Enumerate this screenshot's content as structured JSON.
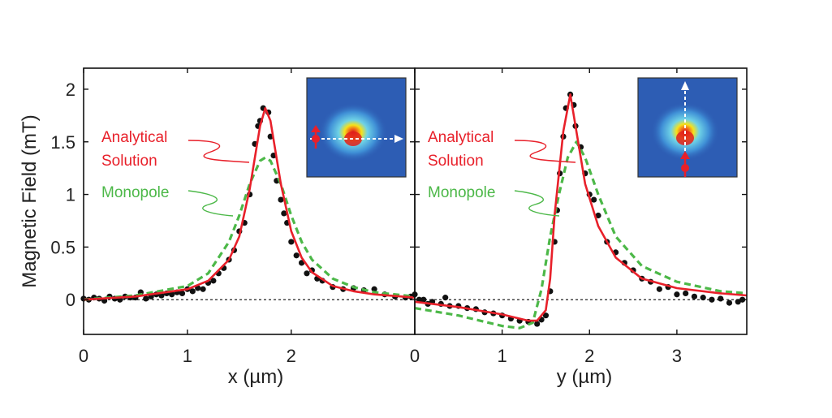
{
  "chart_data": [
    {
      "type": "scatter+line",
      "xlabel": "x (µm)",
      "ylabel": "Magnetic Field (mT)",
      "xlim": [
        0,
        3.19
      ],
      "ylim": [
        -0.33,
        2.2
      ],
      "xticks": [
        "0",
        "1",
        "2"
      ],
      "xtick_values": [
        0,
        1,
        2
      ],
      "yticks": [
        "0",
        "0.5",
        "1",
        "1.5",
        "2"
      ],
      "ytick_values": [
        0,
        0.5,
        1,
        1.5,
        2
      ],
      "grid": false,
      "zero_line": "dotted black",
      "annotations": {
        "analytical_line1": "Analytical",
        "analytical_line2": "Solution",
        "monopole": "Monopole"
      },
      "inset": "magnetic field map, horizontal line scan (white dashed arrow), red magnet arrow",
      "series": [
        {
          "name": "Analytical Solution",
          "style": "solid",
          "color": "#e8202a",
          "points": [
            [
              0,
              0.0
            ],
            [
              0.5,
              0.03
            ],
            [
              1.0,
              0.1
            ],
            [
              1.2,
              0.18
            ],
            [
              1.4,
              0.38
            ],
            [
              1.5,
              0.6
            ],
            [
              1.6,
              1.05
            ],
            [
              1.7,
              1.65
            ],
            [
              1.75,
              1.82
            ],
            [
              1.8,
              1.7
            ],
            [
              1.9,
              1.1
            ],
            [
              2.0,
              0.65
            ],
            [
              2.1,
              0.4
            ],
            [
              2.2,
              0.26
            ],
            [
              2.4,
              0.13
            ],
            [
              2.6,
              0.08
            ],
            [
              2.8,
              0.05
            ],
            [
              3.19,
              0.02
            ]
          ]
        },
        {
          "name": "Monopole",
          "style": "dashed",
          "color": "#4cb848",
          "points": [
            [
              0,
              0.0
            ],
            [
              0.5,
              0.04
            ],
            [
              1.0,
              0.13
            ],
            [
              1.2,
              0.25
            ],
            [
              1.4,
              0.55
            ],
            [
              1.5,
              0.8
            ],
            [
              1.6,
              1.1
            ],
            [
              1.7,
              1.32
            ],
            [
              1.75,
              1.35
            ],
            [
              1.8,
              1.32
            ],
            [
              1.9,
              1.1
            ],
            [
              2.0,
              0.8
            ],
            [
              2.1,
              0.55
            ],
            [
              2.2,
              0.38
            ],
            [
              2.4,
              0.2
            ],
            [
              2.6,
              0.12
            ],
            [
              2.8,
              0.07
            ],
            [
              3.19,
              0.03
            ]
          ]
        },
        {
          "style": "markers",
          "color": "#111111",
          "points": [
            [
              0,
              0.01
            ],
            [
              0.05,
              0.0
            ],
            [
              0.1,
              0.02
            ],
            [
              0.15,
              0.01
            ],
            [
              0.2,
              -0.01
            ],
            [
              0.25,
              0.03
            ],
            [
              0.3,
              0.01
            ],
            [
              0.35,
              0.0
            ],
            [
              0.4,
              0.03
            ],
            [
              0.45,
              0.02
            ],
            [
              0.5,
              0.02
            ],
            [
              0.55,
              0.07
            ],
            [
              0.6,
              0.01
            ],
            [
              0.65,
              0.03
            ],
            [
              0.7,
              0.05
            ],
            [
              0.75,
              0.04
            ],
            [
              0.8,
              0.06
            ],
            [
              0.85,
              0.05
            ],
            [
              0.9,
              0.07
            ],
            [
              0.95,
              0.06
            ],
            [
              1.0,
              0.1
            ],
            [
              1.05,
              0.08
            ],
            [
              1.1,
              0.11
            ],
            [
              1.15,
              0.1
            ],
            [
              1.2,
              0.16
            ],
            [
              1.25,
              0.18
            ],
            [
              1.3,
              0.25
            ],
            [
              1.35,
              0.3
            ],
            [
              1.4,
              0.38
            ],
            [
              1.45,
              0.47
            ],
            [
              1.5,
              0.65
            ],
            [
              1.55,
              0.73
            ],
            [
              1.6,
              1.0
            ],
            [
              1.65,
              1.48
            ],
            [
              1.68,
              1.65
            ],
            [
              1.7,
              1.7
            ],
            [
              1.73,
              1.82
            ],
            [
              1.78,
              1.78
            ],
            [
              1.8,
              1.55
            ],
            [
              1.83,
              1.37
            ],
            [
              1.86,
              1.13
            ],
            [
              1.9,
              0.95
            ],
            [
              1.93,
              0.82
            ],
            [
              1.96,
              0.73
            ],
            [
              2.0,
              0.55
            ],
            [
              2.05,
              0.42
            ],
            [
              2.1,
              0.35
            ],
            [
              2.15,
              0.25
            ],
            [
              2.2,
              0.28
            ],
            [
              2.25,
              0.2
            ],
            [
              2.3,
              0.18
            ],
            [
              2.4,
              0.12
            ],
            [
              2.5,
              0.1
            ],
            [
              2.6,
              0.11
            ],
            [
              2.7,
              0.09
            ],
            [
              2.8,
              0.1
            ],
            [
              2.9,
              0.05
            ],
            [
              3.0,
              0.03
            ],
            [
              3.1,
              0.02
            ],
            [
              3.15,
              0.03
            ]
          ]
        }
      ]
    },
    {
      "type": "scatter+line",
      "xlabel": "y (µm)",
      "xlim": [
        0,
        3.8
      ],
      "ylim": [
        -0.33,
        2.2
      ],
      "xticks": [
        "0",
        "1",
        "2",
        "3"
      ],
      "xtick_values": [
        0,
        1,
        2,
        3
      ],
      "grid": false,
      "zero_line": "dotted black",
      "annotations": {
        "analytical_line1": "Analytical",
        "analytical_line2": "Solution",
        "monopole": "Monopole"
      },
      "inset": "magnetic field map, vertical line scan (white dashed arrow), red magnet arrow",
      "series": [
        {
          "name": "Analytical Solution",
          "style": "solid",
          "color": "#e8202a",
          "points": [
            [
              0,
              -0.02
            ],
            [
              0.5,
              -0.07
            ],
            [
              1.0,
              -0.14
            ],
            [
              1.3,
              -0.2
            ],
            [
              1.4,
              -0.2
            ],
            [
              1.5,
              -0.1
            ],
            [
              1.55,
              0.2
            ],
            [
              1.6,
              0.8
            ],
            [
              1.7,
              1.6
            ],
            [
              1.78,
              1.95
            ],
            [
              1.85,
              1.6
            ],
            [
              1.95,
              1.1
            ],
            [
              2.1,
              0.7
            ],
            [
              2.3,
              0.4
            ],
            [
              2.6,
              0.2
            ],
            [
              3.0,
              0.11
            ],
            [
              3.5,
              0.06
            ],
            [
              3.8,
              0.04
            ]
          ]
        },
        {
          "name": "Monopole",
          "style": "dashed",
          "color": "#4cb848",
          "points": [
            [
              0,
              -0.08
            ],
            [
              0.5,
              -0.15
            ],
            [
              1.0,
              -0.25
            ],
            [
              1.2,
              -0.27
            ],
            [
              1.35,
              -0.22
            ],
            [
              1.45,
              0.1
            ],
            [
              1.55,
              0.6
            ],
            [
              1.65,
              1.0
            ],
            [
              1.75,
              1.35
            ],
            [
              1.85,
              1.5
            ],
            [
              1.95,
              1.35
            ],
            [
              2.1,
              1.0
            ],
            [
              2.3,
              0.6
            ],
            [
              2.6,
              0.32
            ],
            [
              3.0,
              0.17
            ],
            [
              3.5,
              0.08
            ],
            [
              3.8,
              0.06
            ]
          ]
        },
        {
          "style": "markers",
          "color": "#111111",
          "points": [
            [
              0,
              0.05
            ],
            [
              0.05,
              0.0
            ],
            [
              0.1,
              0.0
            ],
            [
              0.15,
              -0.04
            ],
            [
              0.2,
              -0.02
            ],
            [
              0.3,
              -0.04
            ],
            [
              0.35,
              0.02
            ],
            [
              0.4,
              -0.06
            ],
            [
              0.5,
              -0.06
            ],
            [
              0.6,
              -0.08
            ],
            [
              0.7,
              -0.09
            ],
            [
              0.8,
              -0.12
            ],
            [
              0.9,
              -0.13
            ],
            [
              1.0,
              -0.15
            ],
            [
              1.1,
              -0.18
            ],
            [
              1.2,
              -0.2
            ],
            [
              1.3,
              -0.21
            ],
            [
              1.4,
              -0.23
            ],
            [
              1.45,
              -0.19
            ],
            [
              1.5,
              -0.15
            ],
            [
              1.55,
              0.08
            ],
            [
              1.6,
              0.55
            ],
            [
              1.63,
              0.85
            ],
            [
              1.66,
              1.2
            ],
            [
              1.7,
              1.55
            ],
            [
              1.73,
              1.82
            ],
            [
              1.78,
              1.95
            ],
            [
              1.82,
              1.85
            ],
            [
              1.84,
              1.65
            ],
            [
              1.9,
              1.45
            ],
            [
              1.95,
              1.2
            ],
            [
              2.0,
              1.0
            ],
            [
              2.05,
              0.95
            ],
            [
              2.1,
              0.8
            ],
            [
              2.2,
              0.55
            ],
            [
              2.3,
              0.45
            ],
            [
              2.4,
              0.35
            ],
            [
              2.5,
              0.28
            ],
            [
              2.6,
              0.2
            ],
            [
              2.7,
              0.17
            ],
            [
              2.8,
              0.1
            ],
            [
              2.9,
              0.12
            ],
            [
              3.0,
              0.05
            ],
            [
              3.1,
              0.06
            ],
            [
              3.2,
              0.03
            ],
            [
              3.3,
              0.02
            ],
            [
              3.4,
              0.0
            ],
            [
              3.5,
              0.01
            ],
            [
              3.6,
              -0.03
            ],
            [
              3.7,
              -0.02
            ],
            [
              3.75,
              0.0
            ]
          ]
        }
      ]
    }
  ]
}
